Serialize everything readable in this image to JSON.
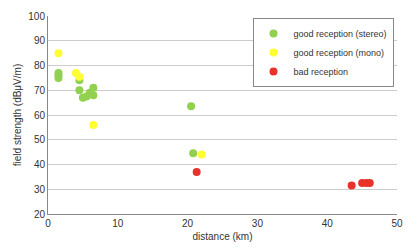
{
  "chart_data": {
    "type": "scatter",
    "x_label": "distance (km)",
    "y_label": "field strength (dBμV/m)",
    "xlim": [
      0,
      50
    ],
    "xticks": [
      0,
      10,
      20,
      30,
      40,
      50
    ],
    "ylim": [
      20,
      100
    ],
    "yticks": [
      20,
      30,
      40,
      50,
      60,
      70,
      80,
      90,
      100
    ],
    "grid": true,
    "legend": "upper right",
    "series": [
      {
        "name": "good reception (stereo)",
        "color": "#92d050",
        "marker": "circle",
        "x": [
          1.5,
          1.5,
          1.5,
          4.5,
          4.5,
          5,
          5.5,
          6,
          6.5,
          6.5,
          20.5,
          20.8
        ],
        "values": [
          77,
          76,
          75,
          74,
          70,
          67,
          67.5,
          69,
          68,
          71,
          63.5,
          44.5
        ]
      },
      {
        "name": "good reception (mono)",
        "color": "#ffff33",
        "marker": "circle",
        "x": [
          1.5,
          4,
          4.5,
          6.5,
          22
        ],
        "values": [
          85,
          77,
          75.5,
          56,
          44
        ]
      },
      {
        "name": "bad reception",
        "color": "#e8332a",
        "marker": "circle",
        "x": [
          21.3,
          43.5,
          45,
          45.6,
          46.1
        ],
        "values": [
          37,
          31.5,
          32.5,
          32.5,
          32.5
        ]
      }
    ]
  }
}
